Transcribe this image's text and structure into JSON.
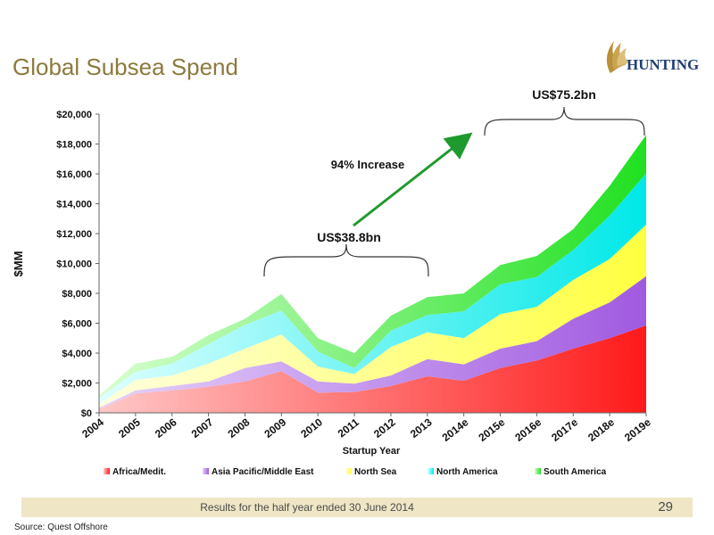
{
  "slide": {
    "title": "Global Subsea Spend",
    "logo_text": "HUNTING",
    "footer_text": "Results for the half year ended 30 June 2014",
    "page_number": "29",
    "source": "Source:  Quest Offshore"
  },
  "colors": {
    "title": "#8c7a3c",
    "footer_band": "#efe6c6",
    "arrow": "#1f9a2e",
    "logo": "#1f3f73",
    "logo_accent": "#b8913a"
  },
  "chart_data": {
    "type": "area",
    "stacked": true,
    "x": [
      "2004",
      "2005",
      "2006",
      "2007",
      "2008",
      "2009",
      "2010",
      "2011",
      "2012",
      "2013",
      "2014e",
      "2015e",
      "2016e",
      "2017e",
      "2018e",
      "2019e"
    ],
    "xlabel": "Startup Year",
    "ylabel": "$MM",
    "ylim": [
      0,
      20000
    ],
    "yticks": [
      0,
      2000,
      4000,
      6000,
      8000,
      10000,
      12000,
      14000,
      16000,
      18000,
      20000
    ],
    "ytick_labels": [
      "$0",
      "$2,000",
      "$4,000",
      "$6,000",
      "$8,000",
      "$10,000",
      "$12,000",
      "$14,000",
      "$16,000",
      "$18,000",
      "$20,000"
    ],
    "legend_position": "bottom",
    "series": [
      {
        "name": "Africa/Medit.",
        "color": "#ff4040",
        "values": [
          250,
          1300,
          1500,
          1750,
          2100,
          2800,
          1350,
          1400,
          1800,
          2450,
          2150,
          3000,
          3500,
          4300,
          5000,
          5850
        ]
      },
      {
        "name": "Asia Pacific/Middle East",
        "color": "#b27ee6",
        "values": [
          100,
          200,
          300,
          350,
          900,
          650,
          750,
          550,
          700,
          1150,
          1100,
          1300,
          1300,
          2000,
          2400,
          3300
        ]
      },
      {
        "name": "North Sea",
        "color": "#ffff7a",
        "values": [
          250,
          700,
          700,
          1200,
          1300,
          1800,
          1000,
          650,
          1900,
          1800,
          1750,
          2300,
          2300,
          2600,
          2900,
          3450
        ]
      },
      {
        "name": "North America",
        "color": "#40f0f0",
        "values": [
          400,
          550,
          800,
          1300,
          1600,
          1600,
          1000,
          400,
          1100,
          1150,
          1800,
          2000,
          2000,
          2000,
          2900,
          3450
        ]
      },
      {
        "name": "South America",
        "color": "#40e040",
        "values": [
          150,
          550,
          450,
          600,
          400,
          1100,
          900,
          1000,
          1000,
          1200,
          1200,
          1300,
          1400,
          1400,
          2000,
          2550
        ]
      }
    ],
    "annotations": {
      "bracket_1_label": "US$38.8bn",
      "bracket_2_label": "US$75.2bn",
      "arrow_label": "94% Increase"
    }
  }
}
